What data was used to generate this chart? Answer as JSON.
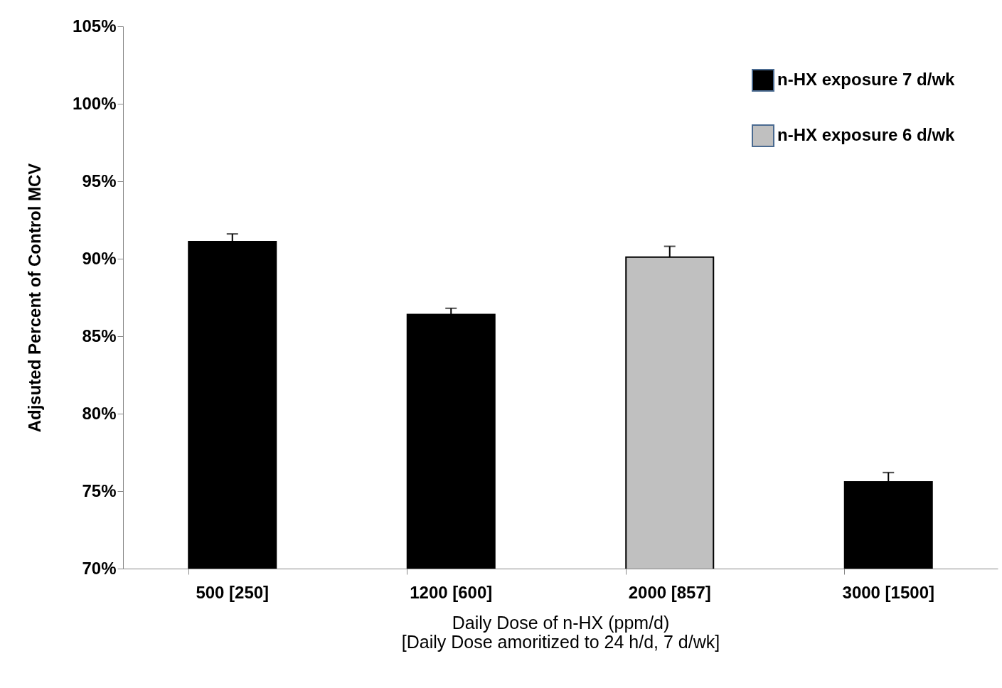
{
  "chart_data": {
    "type": "bar",
    "xlabel": "Daily Dose of n-HX (ppm/d)\n[Daily Dose amoritized to 24 h/d, 7 d/wk]",
    "ylabel": "Adjsuted Percent of Control MCV",
    "categories": [
      "500 [250]",
      "1200 [600]",
      "2000 [857]",
      "3000 [1500]"
    ],
    "series": [
      {
        "name": "n-HX exposure 7 d/wk",
        "color": "#000000",
        "values": [
          91.1,
          86.4,
          null,
          75.6
        ],
        "errors": [
          [
            91.1,
            91.6
          ],
          [
            86.4,
            86.8
          ],
          null,
          [
            75.6,
            76.2
          ]
        ]
      },
      {
        "name": "n-HX exposure 6 d/wk",
        "color": "#c0c0c0",
        "values": [
          null,
          null,
          90.1,
          null
        ],
        "errors": [
          null,
          null,
          [
            90.1,
            90.8
          ],
          null
        ]
      }
    ],
    "ylim": [
      70,
      105
    ],
    "yticks": [
      {
        "value": 70,
        "label": "70%"
      },
      {
        "value": 75,
        "label": "75%"
      },
      {
        "value": 80,
        "label": "80%"
      },
      {
        "value": 85,
        "label": "85%"
      },
      {
        "value": 90,
        "label": "90%"
      },
      {
        "value": 95,
        "label": "95%"
      },
      {
        "value": 100,
        "label": "100%"
      },
      {
        "value": 105,
        "label": "105%"
      }
    ],
    "grid": false,
    "legend": "top right"
  }
}
